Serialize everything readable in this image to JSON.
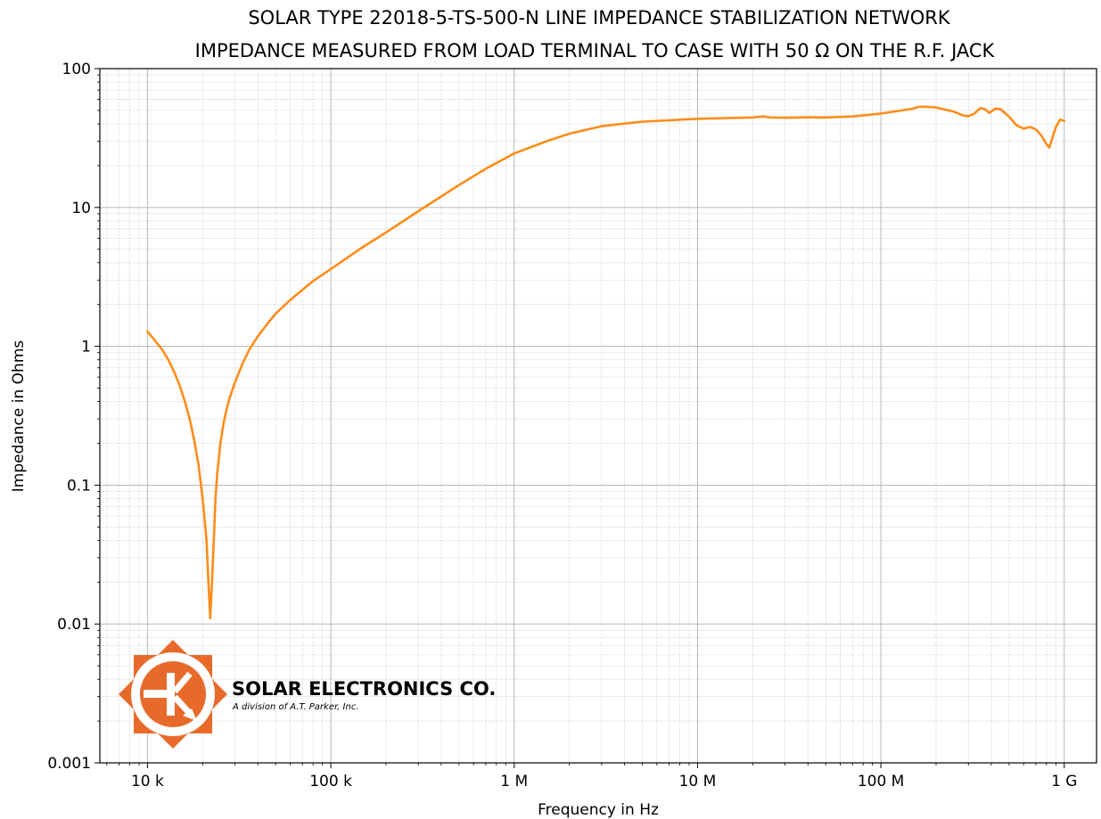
{
  "chart_data": {
    "type": "line",
    "title": "SOLAR TYPE 22018-5-TS-500-N LINE IMPEDANCE STABILIZATION NETWORK",
    "subtitle": "IMPEDANCE MEASURED FROM LOAD TERMINAL TO CASE WITH 50 Ω ON THE R.F. JACK",
    "xlabel": "Frequency in Hz",
    "ylabel": "Impedance in Ohms",
    "xscale": "log",
    "yscale": "log",
    "xlim": [
      5500,
      1500000000
    ],
    "ylim": [
      0.001,
      100
    ],
    "grid": true,
    "line_color": "#ff8c1a",
    "x_ticks": [
      {
        "value": 10000,
        "label": "10 k"
      },
      {
        "value": 100000,
        "label": "100 k"
      },
      {
        "value": 1000000,
        "label": "1 M"
      },
      {
        "value": 10000000,
        "label": "10 M"
      },
      {
        "value": 100000000,
        "label": "100 M"
      },
      {
        "value": 1000000000,
        "label": "1 G"
      }
    ],
    "y_ticks": [
      {
        "value": 0.001,
        "label": "0.001"
      },
      {
        "value": 0.01,
        "label": "0.01"
      },
      {
        "value": 0.1,
        "label": "0.1"
      },
      {
        "value": 1,
        "label": "1"
      },
      {
        "value": 10,
        "label": "10"
      },
      {
        "value": 100,
        "label": "100"
      }
    ],
    "series": [
      {
        "color": "#ff8c1a",
        "x": [
          10000,
          11000,
          12000,
          13000,
          14000,
          15000,
          16000,
          17000,
          18000,
          19000,
          20000,
          21000,
          21500,
          22000,
          22500,
          23000,
          23500,
          24000,
          25000,
          26000,
          27000,
          28000,
          30000,
          33000,
          36000,
          40000,
          45000,
          50000,
          60000,
          70000,
          80000,
          100000,
          150000,
          200000,
          300000,
          500000,
          700000,
          1000000,
          1500000,
          2000000,
          3000000,
          5000000,
          10000000,
          20000000,
          23000000,
          25000000,
          30000000,
          40000000,
          50000000,
          70000000,
          100000000,
          130000000,
          150000000,
          160000000,
          170000000,
          200000000,
          250000000,
          280000000,
          300000000,
          320000000,
          350000000,
          370000000,
          390000000,
          420000000,
          450000000,
          500000000,
          550000000,
          600000000,
          650000000,
          700000000,
          750000000,
          800000000,
          830000000,
          870000000,
          900000000,
          950000000,
          1000000000
        ],
        "y": [
          1.28,
          1.1,
          0.95,
          0.8,
          0.65,
          0.52,
          0.4,
          0.3,
          0.21,
          0.14,
          0.08,
          0.04,
          0.02,
          0.011,
          0.02,
          0.04,
          0.08,
          0.12,
          0.2,
          0.28,
          0.35,
          0.42,
          0.55,
          0.75,
          0.95,
          1.18,
          1.45,
          1.72,
          2.15,
          2.55,
          2.95,
          3.6,
          5.2,
          6.6,
          9.4,
          14.5,
          19,
          24.5,
          30,
          34,
          38.5,
          41.5,
          43.5,
          44.5,
          45.3,
          44.5,
          44.3,
          44.6,
          44.5,
          45.2,
          47.5,
          50,
          51.5,
          53,
          53.2,
          52.5,
          49,
          46,
          45.5,
          47,
          52,
          51,
          48,
          51.5,
          51,
          45,
          39,
          37,
          38,
          36.5,
          33,
          28.5,
          27,
          33,
          38,
          43,
          42
        ]
      }
    ]
  },
  "logo": {
    "company": "SOLAR ELECTRONICS CO.",
    "tagline": "A division of A.T. Parker, Inc.",
    "color": "#e86a2b"
  }
}
